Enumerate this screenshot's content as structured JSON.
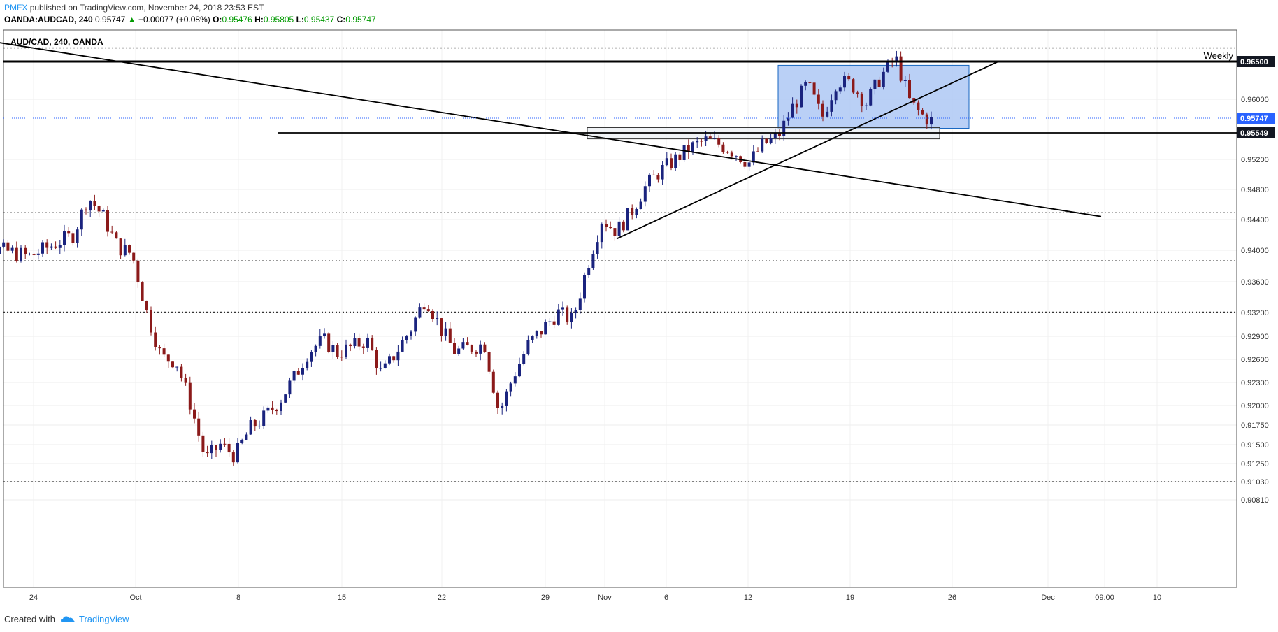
{
  "header": {
    "brand": "PMFX",
    "published": "published on TradingView.com, November 24, 2018 23:53 EST",
    "symbol": "OANDA:AUDCAD, 240",
    "last": "0.95747",
    "change_arrow": "▲",
    "change": "+0.00077 (+0.08%)",
    "open_label": "O:",
    "open": "0.95476",
    "high_label": "H:",
    "high": "0.95805",
    "low_label": "L:",
    "low": "0.95437",
    "close_label": "C:",
    "close": "0.95747"
  },
  "chart_title": "AUD/CAD, 240, OANDA",
  "footer": {
    "created_with": "Created with",
    "tv_name": "TradingView",
    "logo_icon": "tradingview-cloud-icon"
  },
  "colors": {
    "up_candle": "#1a237e",
    "down_candle": "#8b1a1a",
    "zone_fill": "#aec8f5",
    "zone_stroke": "#1565c0",
    "current_price": "#2962ff",
    "text": "#333333"
  },
  "chart_data": {
    "type": "candlestick",
    "title": "AUD/CAD, 240, OANDA",
    "x_ticks": [
      "24",
      "Oct",
      "8",
      "15",
      "22",
      "29",
      "Nov",
      "6",
      "12",
      "19",
      "26",
      "Dec",
      "09:00",
      "10"
    ],
    "y_ticks": [
      "0.96500",
      "0.96000",
      "0.95747",
      "0.95549",
      "0.95200",
      "0.94800",
      "0.94400",
      "0.94000",
      "0.93600",
      "0.93200",
      "0.92900",
      "0.92600",
      "0.92300",
      "0.92000",
      "0.91750",
      "0.91500",
      "0.91250",
      "0.91030",
      "0.90810"
    ],
    "ylim": [
      0.9075,
      0.9703
    ],
    "y_knots": [
      [
        0.965,
        88
      ],
      [
        0.96,
        142
      ],
      [
        0.95747,
        169
      ],
      [
        0.95549,
        190
      ],
      [
        0.952,
        228
      ],
      [
        0.948,
        271
      ],
      [
        0.944,
        314
      ],
      [
        0.94,
        358
      ],
      [
        0.936,
        403
      ],
      [
        0.932,
        447
      ],
      [
        0.929,
        481
      ],
      [
        0.926,
        514
      ],
      [
        0.923,
        547
      ],
      [
        0.92,
        580
      ],
      [
        0.9175,
        608
      ],
      [
        0.915,
        636
      ],
      [
        0.9125,
        663
      ],
      [
        0.9103,
        689
      ],
      [
        0.9081,
        715
      ]
    ],
    "x_dates": [
      "Sep 24",
      "Oct 1",
      "Oct 8",
      "Oct 15",
      "Oct 22",
      "Oct 29",
      "Nov 1",
      "Nov 6",
      "Nov 12",
      "Nov 19",
      "Nov 26",
      "Dec 1",
      "Dec 10"
    ],
    "price_labels": [
      {
        "text": "0.96500",
        "style": "dark"
      },
      {
        "text": "0.95747",
        "style": "blue"
      },
      {
        "text": "0.95549",
        "style": "dark"
      }
    ],
    "annotations": [
      {
        "label": "Weekly",
        "type": "horizontal-line",
        "y": 0.965
      },
      {
        "type": "horizontal-line",
        "y": 0.95549
      },
      {
        "type": "dotted-line",
        "y": 0.9668
      },
      {
        "type": "dotted-line",
        "y": 0.9449
      },
      {
        "type": "dotted-line",
        "y": 0.93865
      },
      {
        "type": "dotted-line",
        "y": 0.93205
      },
      {
        "type": "dotted-line",
        "y": 0.9103
      },
      {
        "type": "trendline",
        "from": [
          "Sep 19",
          0.9684
        ],
        "to": [
          "Dec 6",
          0.9444
        ]
      },
      {
        "type": "trendline",
        "from": [
          "Nov 3",
          0.9415
        ],
        "to": [
          "Nov 29",
          0.965
        ]
      },
      {
        "type": "rectangle",
        "from": [
          "Nov 14",
          0.9645
        ],
        "to": [
          "Nov 27",
          0.9561
        ]
      },
      {
        "type": "rectangle",
        "from": [
          "Nov 1",
          0.9562
        ],
        "to": [
          "Nov 25",
          0.9547
        ]
      }
    ],
    "grid": true,
    "candles": {
      "timeframe": "240",
      "anchors": [
        [
          "Sep 19",
          0.941
        ],
        [
          "Sep 21",
          0.9405
        ],
        [
          "Sep 24",
          0.9392
        ],
        [
          "Sep 27",
          0.942
        ],
        [
          "Sep 28",
          0.947
        ],
        [
          "Sep 29",
          0.9445
        ],
        [
          "Sep 30",
          0.9405
        ],
        [
          "Oct 1",
          0.9395
        ],
        [
          "Oct 2",
          0.932
        ],
        [
          "Oct 3",
          0.9262
        ],
        [
          "Oct 4",
          0.9258
        ],
        [
          "Oct 5",
          0.92
        ],
        [
          "Oct 6",
          0.913
        ],
        [
          "Oct 7",
          0.915
        ],
        [
          "Oct 8",
          0.9135
        ],
        [
          "Oct 9",
          0.917
        ],
        [
          "Oct 10",
          0.9185
        ],
        [
          "Oct 11",
          0.9205
        ],
        [
          "Oct 12",
          0.9235
        ],
        [
          "Oct 13",
          0.927
        ],
        [
          "Oct 14",
          0.9285
        ],
        [
          "Oct 15",
          0.9268
        ],
        [
          "Oct 17",
          0.9285
        ],
        [
          "Oct 18",
          0.924
        ],
        [
          "Oct 20",
          0.93
        ],
        [
          "Oct 21",
          0.934
        ],
        [
          "Oct 22",
          0.93
        ],
        [
          "Oct 23",
          0.927
        ],
        [
          "Oct 25",
          0.928
        ],
        [
          "Oct 26",
          0.919
        ],
        [
          "Oct 27",
          0.924
        ],
        [
          "Oct 28",
          0.928
        ],
        [
          "Oct 29",
          0.93
        ],
        [
          "Oct 30",
          0.932
        ],
        [
          "Oct 31",
          0.931
        ],
        [
          "Nov 1",
          0.938
        ],
        [
          "Nov 2",
          0.944
        ],
        [
          "Nov 3",
          0.9425
        ],
        [
          "Nov 4",
          0.945
        ],
        [
          "Nov 5",
          0.9485
        ],
        [
          "Nov 6",
          0.9505
        ],
        [
          "Nov 7",
          0.952
        ],
        [
          "Nov 8",
          0.9535
        ],
        [
          "Nov 9",
          0.9545
        ],
        [
          "Nov 10",
          0.954
        ],
        [
          "Nov 11",
          0.953
        ],
        [
          "Nov 12",
          0.9515
        ],
        [
          "Nov 13",
          0.954
        ],
        [
          "Nov 14",
          0.955
        ],
        [
          "Nov 15",
          0.959
        ],
        [
          "Nov 16",
          0.962
        ],
        [
          "Nov 17",
          0.9575
        ],
        [
          "Nov 18",
          0.9625
        ],
        [
          "Nov 19",
          0.962
        ],
        [
          "Nov 20",
          0.9595
        ],
        [
          "Nov 21",
          0.963
        ],
        [
          "Nov 22",
          0.9655
        ],
        [
          "Nov 23",
          0.9595
        ],
        [
          "Nov 24",
          0.9575
        ],
        [
          "Nov 24.7",
          0.957
        ]
      ]
    }
  }
}
